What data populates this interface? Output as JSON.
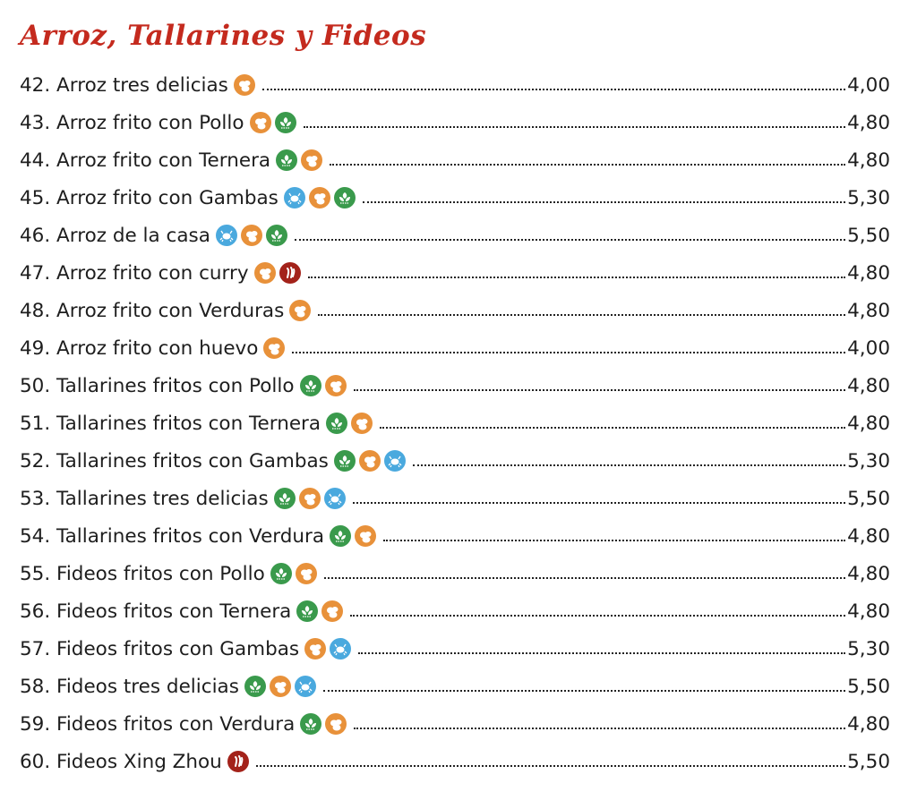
{
  "title": "Arroz, Tallarines y Fideos",
  "allergen_colors": {
    "eggs": "#e8913a",
    "soy": "#3a9a4c",
    "crustaceans": "#4aa9de",
    "mustard": "#a3221a"
  },
  "items": [
    {
      "name": "42. Arroz tres delicias",
      "icons": [
        "eggs"
      ],
      "price": "4,00"
    },
    {
      "name": "43. Arroz frito con Pollo",
      "icons": [
        "eggs",
        "soy"
      ],
      "price": "4,80"
    },
    {
      "name": "44. Arroz frito con Ternera",
      "icons": [
        "soy",
        "eggs"
      ],
      "price": "4,80"
    },
    {
      "name": "45. Arroz frito con Gambas",
      "icons": [
        "crustaceans",
        "eggs",
        "soy"
      ],
      "price": "5,30"
    },
    {
      "name": "46. Arroz de la casa",
      "icons": [
        "crustaceans",
        "eggs",
        "soy"
      ],
      "price": "5,50"
    },
    {
      "name": "47. Arroz frito con curry",
      "icons": [
        "eggs",
        "mustard"
      ],
      "price": "4,80"
    },
    {
      "name": "48. Arroz frito con Verduras",
      "icons": [
        "eggs"
      ],
      "price": "4,80"
    },
    {
      "name": "49. Arroz frito con huevo",
      "icons": [
        "eggs"
      ],
      "price": "4,00"
    },
    {
      "name": "50. Tallarines fritos con Pollo",
      "icons": [
        "soy",
        "eggs"
      ],
      "price": "4,80"
    },
    {
      "name": "51. Tallarines fritos con Ternera",
      "icons": [
        "soy",
        "eggs"
      ],
      "price": "4,80"
    },
    {
      "name": "52. Tallarines fritos con Gambas",
      "icons": [
        "soy",
        "eggs",
        "crustaceans"
      ],
      "price": "5,30"
    },
    {
      "name": "53. Tallarines tres delicias",
      "icons": [
        "soy",
        "eggs",
        "crustaceans"
      ],
      "price": "5,50"
    },
    {
      "name": "54. Tallarines fritos con Verdura",
      "icons": [
        "soy",
        "eggs"
      ],
      "price": "4,80"
    },
    {
      "name": "55. Fideos fritos con Pollo",
      "icons": [
        "soy",
        "eggs"
      ],
      "price": "4,80"
    },
    {
      "name": "56. Fideos fritos con Ternera",
      "icons": [
        "soy",
        "eggs"
      ],
      "price": "4,80"
    },
    {
      "name": "57. Fideos fritos con Gambas",
      "icons": [
        "eggs",
        "crustaceans"
      ],
      "price": "5,30"
    },
    {
      "name": "58. Fideos tres delicias",
      "icons": [
        "soy",
        "eggs",
        "crustaceans"
      ],
      "price": "5,50"
    },
    {
      "name": "59. Fideos fritos con Verdura",
      "icons": [
        "soy",
        "eggs"
      ],
      "price": "4,80"
    },
    {
      "name": "60. Fideos Xing Zhou",
      "icons": [
        "mustard"
      ],
      "price": "5,50"
    }
  ]
}
